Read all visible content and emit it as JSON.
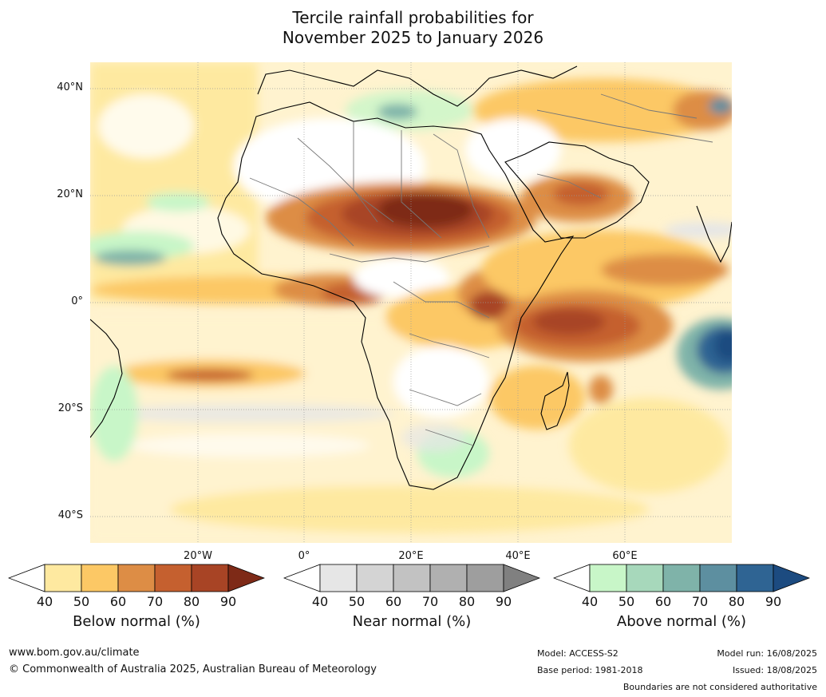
{
  "title_line1": "Tercile rainfall probabilities for",
  "title_line2": "November 2025 to January 2026",
  "map": {
    "lat_labels": [
      "40°N",
      "20°N",
      "0°",
      "20°S",
      "40°S"
    ],
    "lon_labels": [
      "20°W",
      "0°",
      "20°E",
      "40°E",
      "60°E"
    ]
  },
  "legends": [
    {
      "title": "Below normal (%)",
      "ticks": [
        "40",
        "50",
        "60",
        "70",
        "80",
        "90"
      ],
      "colors": [
        "#ffffff",
        "#fee9a0",
        "#fcc865",
        "#dd8d45",
        "#c5602f",
        "#a84425",
        "#7e2a17"
      ]
    },
    {
      "title": "Near normal (%)",
      "ticks": [
        "40",
        "50",
        "60",
        "70",
        "80",
        "90"
      ],
      "colors": [
        "#ffffff",
        "#e6e6e6",
        "#d4d4d4",
        "#c2c2c2",
        "#b0b0b0",
        "#9e9e9e",
        "#808080"
      ]
    },
    {
      "title": "Above normal (%)",
      "ticks": [
        "40",
        "50",
        "60",
        "70",
        "80",
        "90"
      ],
      "colors": [
        "#ffffff",
        "#c8f6c8",
        "#a7d8bb",
        "#7fb3a9",
        "#5d8fa0",
        "#2f6493",
        "#1c4b80"
      ]
    }
  ],
  "footer": {
    "website": "www.bom.gov.au/climate",
    "copyright": "© Commonwealth of Australia 2025, Australian Bureau of Meteorology",
    "model": "Model: ACCESS-S2",
    "base_period": "Base period: 1981-2018",
    "model_run": "Model run: 16/08/2025",
    "issued": "Issued: 18/08/2025",
    "disclaimer": "Boundaries are not considered authoritative"
  },
  "colors": {
    "ocean_base": "#fff6d8",
    "land_base": "#ffffff"
  }
}
